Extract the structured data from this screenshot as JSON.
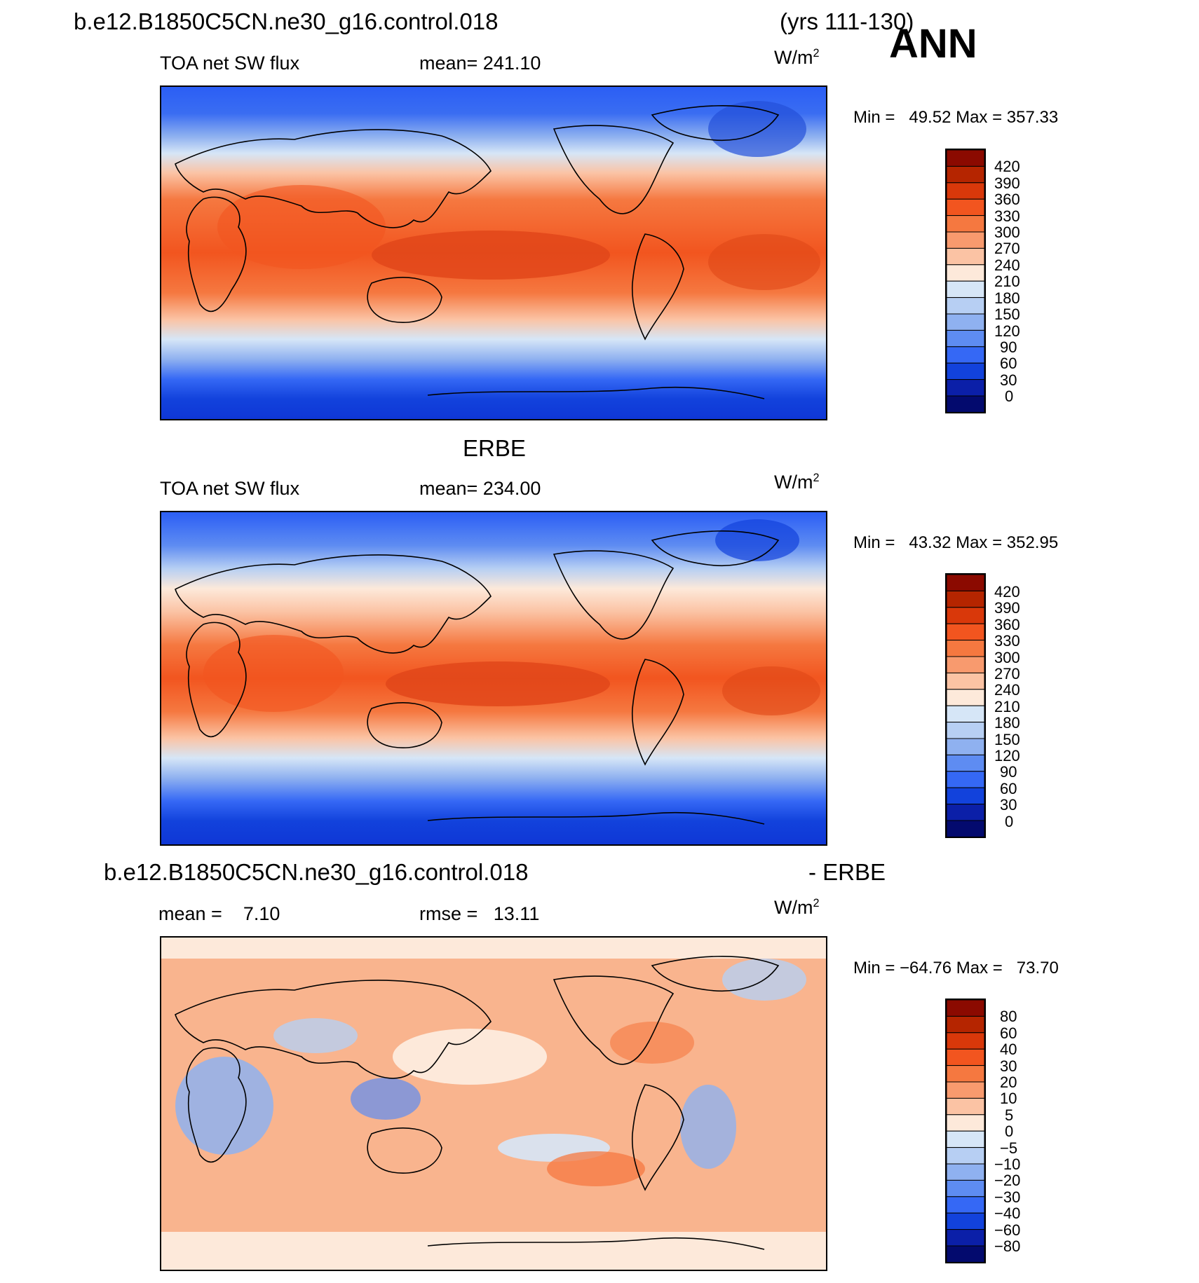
{
  "header": {
    "case_name": "b.e12.B1850C5CN.ne30_g16.control.018",
    "years": "(yrs 111-130)",
    "season": "ANN"
  },
  "panels": [
    {
      "title": "",
      "variable": "TOA net SW flux",
      "stat_left": "mean= 241.10",
      "stat_right": "",
      "units_base": "W/m",
      "units_exp": "2",
      "minmax": "Min =   49.52 Max = 357.33"
    },
    {
      "title": "ERBE",
      "variable": "TOA net SW flux",
      "stat_left": "mean= 234.00",
      "stat_right": "",
      "units_base": "W/m",
      "units_exp": "2",
      "minmax": "Min =   43.32 Max = 352.95"
    },
    {
      "title_left": "b.e12.B1850C5CN.ne30_g16.control.018",
      "title_right": "- ERBE",
      "variable": "mean =    7.10",
      "stat_left": "rmse =   13.11",
      "units_base": "W/m",
      "units_exp": "2",
      "minmax": "Min = −64.76 Max =   73.70"
    }
  ],
  "chart_data": [
    {
      "type": "heatmap",
      "title": "b.e12.B1850C5CN.ne30_g16.control.018",
      "subtitle": "TOA net SW flux",
      "mean": 241.1,
      "min": 49.52,
      "max": 357.33,
      "units": "W/m2",
      "colorbar_levels": [
        "420",
        "390",
        "360",
        "330",
        "300",
        "270",
        "240",
        "210",
        "180",
        "150",
        "120",
        "90",
        "60",
        "30",
        "0"
      ],
      "colorbar_colors": [
        "#8b0a00",
        "#b52500",
        "#d9380a",
        "#f2551f",
        "#f57840",
        "#f89a6e",
        "#fbc3a4",
        "#fde9da",
        "#d6e6f7",
        "#b7cff3",
        "#8fb1f0",
        "#5e8cf2",
        "#3568f5",
        "#1242dc",
        "#0b1fa8",
        "#030a6e"
      ]
    },
    {
      "type": "heatmap",
      "title": "ERBE",
      "subtitle": "TOA net SW flux",
      "mean": 234.0,
      "min": 43.32,
      "max": 352.95,
      "units": "W/m2",
      "colorbar_levels": [
        "420",
        "390",
        "360",
        "330",
        "300",
        "270",
        "240",
        "210",
        "180",
        "150",
        "120",
        "90",
        "60",
        "30",
        "0"
      ]
    },
    {
      "type": "heatmap",
      "title": "b.e12.B1850C5CN.ne30_g16.control.018 - ERBE",
      "mean": 7.1,
      "rmse": 13.11,
      "min": -64.76,
      "max": 73.7,
      "units": "W/m2",
      "colorbar_levels": [
        "80",
        "60",
        "40",
        "30",
        "20",
        "10",
        "5",
        "0",
        "−5",
        "−10",
        "−20",
        "−30",
        "−40",
        "−60",
        "−80"
      ]
    }
  ]
}
